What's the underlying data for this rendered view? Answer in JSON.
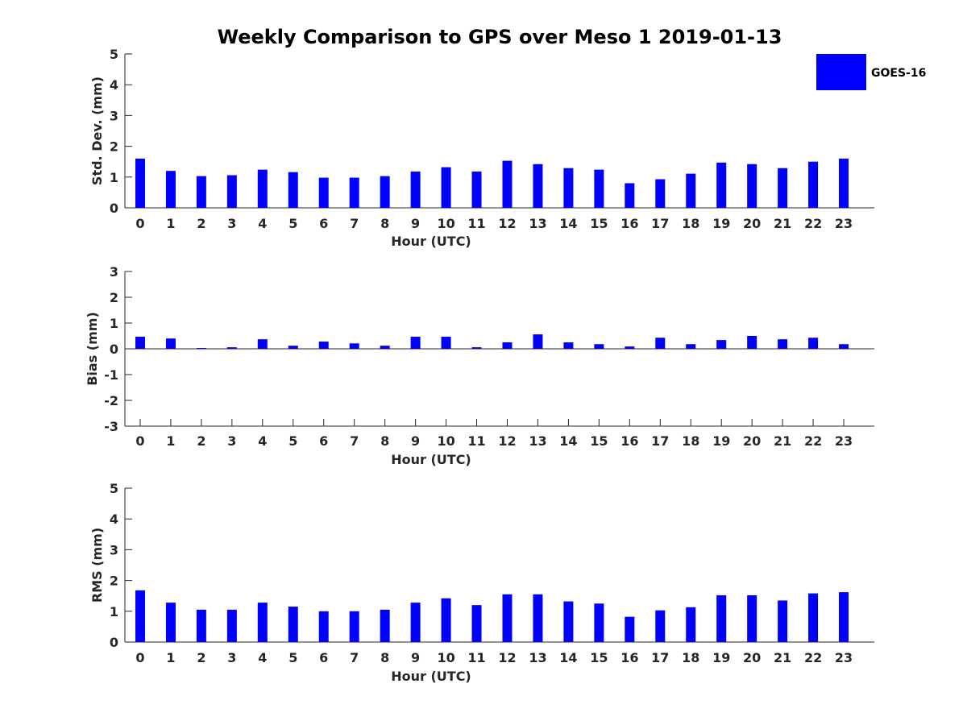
{
  "title": "Weekly Comparison to GPS over Meso 1 2019-01-13",
  "legend": {
    "label": "GOES-16",
    "color": "#0000ff"
  },
  "chart_data": [
    {
      "type": "bar",
      "title": "Weekly Comparison to GPS over Meso 1 2019-01-13",
      "xlabel": "Hour (UTC)",
      "ylabel": "Std. Dev. (mm)",
      "ylim": [
        0,
        5
      ],
      "yticks": [
        "0",
        "1",
        "2",
        "3",
        "4",
        "5"
      ],
      "categories": [
        "0",
        "1",
        "2",
        "3",
        "4",
        "5",
        "6",
        "7",
        "8",
        "9",
        "10",
        "11",
        "12",
        "13",
        "14",
        "15",
        "16",
        "17",
        "18",
        "19",
        "20",
        "21",
        "22",
        "23"
      ],
      "series": [
        {
          "name": "GOES-16",
          "color": "#0000ff",
          "values": [
            1.6,
            1.2,
            1.03,
            1.06,
            1.24,
            1.16,
            0.98,
            0.98,
            1.03,
            1.18,
            1.32,
            1.18,
            1.53,
            1.42,
            1.29,
            1.24,
            0.8,
            0.93,
            1.11,
            1.47,
            1.42,
            1.29,
            1.5,
            1.6
          ]
        }
      ]
    },
    {
      "type": "bar",
      "xlabel": "Hour (UTC)",
      "ylabel": "Bias (mm)",
      "ylim": [
        -3,
        3
      ],
      "yticks": [
        "-3",
        "-2",
        "-1",
        "0",
        "1",
        "2",
        "3"
      ],
      "categories": [
        "0",
        "1",
        "2",
        "3",
        "4",
        "5",
        "6",
        "7",
        "8",
        "9",
        "10",
        "11",
        "12",
        "13",
        "14",
        "15",
        "16",
        "17",
        "18",
        "19",
        "20",
        "21",
        "22",
        "23"
      ],
      "series": [
        {
          "name": "GOES-16",
          "color": "#0000ff",
          "values": [
            0.47,
            0.4,
            0.03,
            0.06,
            0.37,
            0.12,
            0.28,
            0.21,
            0.12,
            0.47,
            0.47,
            0.06,
            0.25,
            0.56,
            0.25,
            0.18,
            0.09,
            0.43,
            0.18,
            0.34,
            0.5,
            0.37,
            0.43,
            0.18
          ]
        }
      ]
    },
    {
      "type": "bar",
      "xlabel": "Hour (UTC)",
      "ylabel": "RMS (mm)",
      "ylim": [
        0,
        5
      ],
      "yticks": [
        "0",
        "1",
        "2",
        "3",
        "4",
        "5"
      ],
      "categories": [
        "0",
        "1",
        "2",
        "3",
        "4",
        "5",
        "6",
        "7",
        "8",
        "9",
        "10",
        "11",
        "12",
        "13",
        "14",
        "15",
        "16",
        "17",
        "18",
        "19",
        "20",
        "21",
        "22",
        "23"
      ],
      "series": [
        {
          "name": "GOES-16",
          "color": "#0000ff",
          "values": [
            1.68,
            1.28,
            1.05,
            1.05,
            1.28,
            1.15,
            1.0,
            1.0,
            1.05,
            1.28,
            1.42,
            1.2,
            1.55,
            1.55,
            1.32,
            1.25,
            0.82,
            1.03,
            1.13,
            1.52,
            1.52,
            1.35,
            1.58,
            1.62
          ]
        }
      ]
    }
  ]
}
